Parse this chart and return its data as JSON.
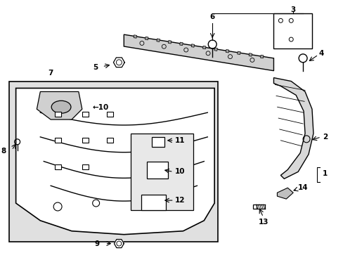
{
  "background_color": "#ffffff",
  "line_color": "#000000",
  "text_color": "#000000",
  "figsize": [
    4.89,
    3.6
  ],
  "dpi": 100,
  "gray_bg": "#d8d8d8",
  "light_gray": "#e8e8e8",
  "mid_gray": "#c8c8c8"
}
